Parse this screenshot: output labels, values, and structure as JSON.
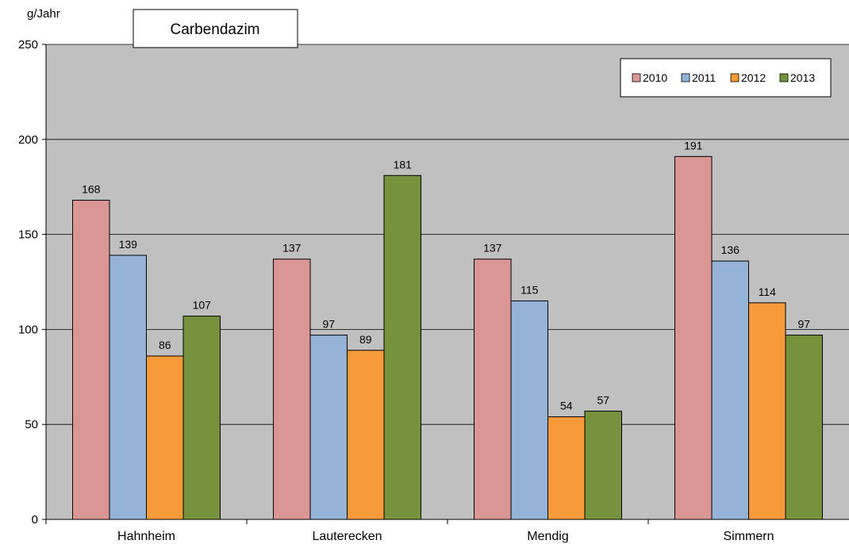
{
  "chart_data": {
    "type": "bar",
    "title": "Carbendazim",
    "ylabel": "g/Jahr",
    "xlabel": "",
    "ylim": [
      0,
      250
    ],
    "yticks": [
      0,
      50,
      100,
      150,
      200,
      250
    ],
    "grid": true,
    "legend_position": "top-right",
    "categories": [
      "Hahnheim",
      "Lauterecken",
      "Mendig",
      "Simmern"
    ],
    "series": [
      {
        "name": "2010",
        "color": "#d99694",
        "values": [
          168,
          137,
          137,
          191
        ]
      },
      {
        "name": "2011",
        "color": "#95b3d7",
        "values": [
          139,
          97,
          115,
          136
        ]
      },
      {
        "name": "2012",
        "color": "#f79a3a",
        "values": [
          86,
          89,
          54,
          114
        ]
      },
      {
        "name": "2013",
        "color": "#76923c",
        "values": [
          107,
          181,
          57,
          97
        ]
      }
    ],
    "plot_background": "#c0c0c0"
  }
}
